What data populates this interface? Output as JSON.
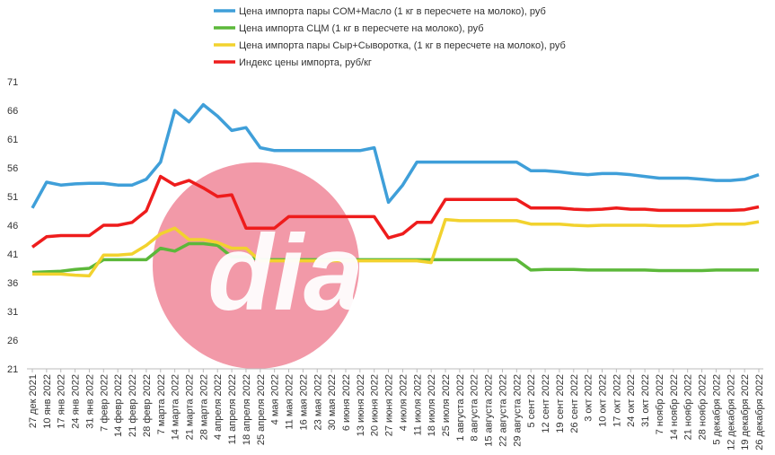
{
  "chart_data": {
    "type": "line",
    "watermark": "dia",
    "categories": [
      "27 дек 2021",
      "10 янв 2022",
      "17 янв 2022",
      "24 янв 2022",
      "31 янв 2022",
      "7 февр 2022",
      "14 февр 2022",
      "21 февр 2022",
      "28 февр 2022",
      "7 марта 2022",
      "14 марта 2022",
      "21 марта 2022",
      "28 марта 2022",
      "4 апреля 2022",
      "11 апреля 2022",
      "18 апреля 2022",
      "25 апреля 2022",
      "4 мая 2022",
      "11 мая 2022",
      "16 мая 2022",
      "23 мая 2022",
      "30 мая 2022",
      "6 июня 2022",
      "13 июня 2022",
      "20 июня 2022",
      "27 июня 2022",
      "4 июля 2022",
      "11 июля 2022",
      "18 июля 2022",
      "25 июля 2022",
      "1 августа 2022",
      "8 августа 2022",
      "15 августа 2022",
      "22 августа 2022",
      "29 августа 2022",
      "5 сент 2022",
      "12 сент 2022",
      "19 сент 2022",
      "26 сент 2022",
      "3 окт 2022",
      "10 окт 2022",
      "17 окт 2022",
      "24 окт 2022",
      "31 окт 2022",
      "7 ноябр 2022",
      "14 ноябр 2022",
      "21 ноябр 2022",
      "28 ноябр 2022",
      "5 декабря 2022",
      "12 декабря 2022",
      "19 декабря 2022",
      "26 декабря 2022"
    ],
    "series": [
      {
        "name": "Цена импорта пары СОМ+Масло  (1 кг в пересчете на молоко), руб",
        "color": "#3f9fd9",
        "values": [
          49,
          53.5,
          53,
          53.2,
          53.3,
          53.3,
          53,
          53,
          54,
          57,
          66,
          64,
          67,
          65,
          62.5,
          63,
          59.5,
          59,
          59,
          59,
          59,
          59,
          59,
          59,
          59.5,
          50,
          53,
          57,
          57,
          57,
          57,
          57,
          57,
          57,
          57,
          55.5,
          55.5,
          55.3,
          55,
          54.8,
          55,
          55,
          54.8,
          54.5,
          54.2,
          54.2,
          54.2,
          54,
          53.8,
          53.8,
          54,
          54.8
        ]
      },
      {
        "name": "Цена импорта СЦМ (1 кг в пересчете на молоко), руб",
        "color": "#5cb83a",
        "values": [
          37.8,
          37.9,
          38,
          38.3,
          38.5,
          40,
          40,
          40,
          40,
          42,
          41.5,
          42.8,
          42.8,
          42.5,
          40.5,
          40.5,
          40,
          40,
          40,
          40,
          40,
          40,
          40,
          40,
          40,
          40,
          40,
          40,
          40,
          40,
          40,
          40,
          40,
          40,
          40,
          38.2,
          38.3,
          38.3,
          38.3,
          38.2,
          38.2,
          38.2,
          38.2,
          38.2,
          38.1,
          38.1,
          38.1,
          38.1,
          38.2,
          38.2,
          38.2,
          38.2
        ]
      },
      {
        "name": "Цена импорта пары Сыр+Сыворотка, (1 кг в пересчете на молоко), руб",
        "color": "#f2d22e",
        "values": [
          37.5,
          37.5,
          37.5,
          37.3,
          37.2,
          40.8,
          40.8,
          41,
          42.5,
          44.5,
          45.5,
          43.5,
          43.5,
          43,
          42,
          42,
          39.8,
          39.8,
          39.8,
          39.8,
          39.8,
          39.8,
          39.8,
          39.8,
          39.8,
          39.8,
          39.8,
          39.8,
          39.5,
          47,
          46.8,
          46.8,
          46.8,
          46.8,
          46.8,
          46.2,
          46.2,
          46.2,
          46,
          45.9,
          46,
          46,
          46,
          46,
          45.9,
          45.9,
          45.9,
          46,
          46.2,
          46.2,
          46.2,
          46.6
        ]
      },
      {
        "name": "Индекс цены импорта, руб/кг",
        "color": "#ee1c1c",
        "values": [
          42.2,
          44,
          44.2,
          44.2,
          44.2,
          46,
          46,
          46.5,
          48.5,
          54.5,
          53,
          53.8,
          52.5,
          51,
          51.3,
          45.5,
          45.5,
          45.5,
          47.5,
          47.5,
          47.5,
          47.5,
          47.5,
          47.5,
          47.5,
          43.8,
          44.5,
          46.5,
          46.5,
          50.5,
          50.5,
          50.5,
          50.5,
          50.5,
          50.5,
          49,
          49,
          49,
          48.8,
          48.7,
          48.8,
          49,
          48.8,
          48.8,
          48.6,
          48.6,
          48.6,
          48.6,
          48.6,
          48.6,
          48.7,
          49.2
        ]
      }
    ],
    "ylim": [
      21,
      71
    ],
    "yticks": [
      21,
      26,
      31,
      36,
      41,
      46,
      51,
      56,
      61,
      66,
      71
    ],
    "grid": false
  }
}
